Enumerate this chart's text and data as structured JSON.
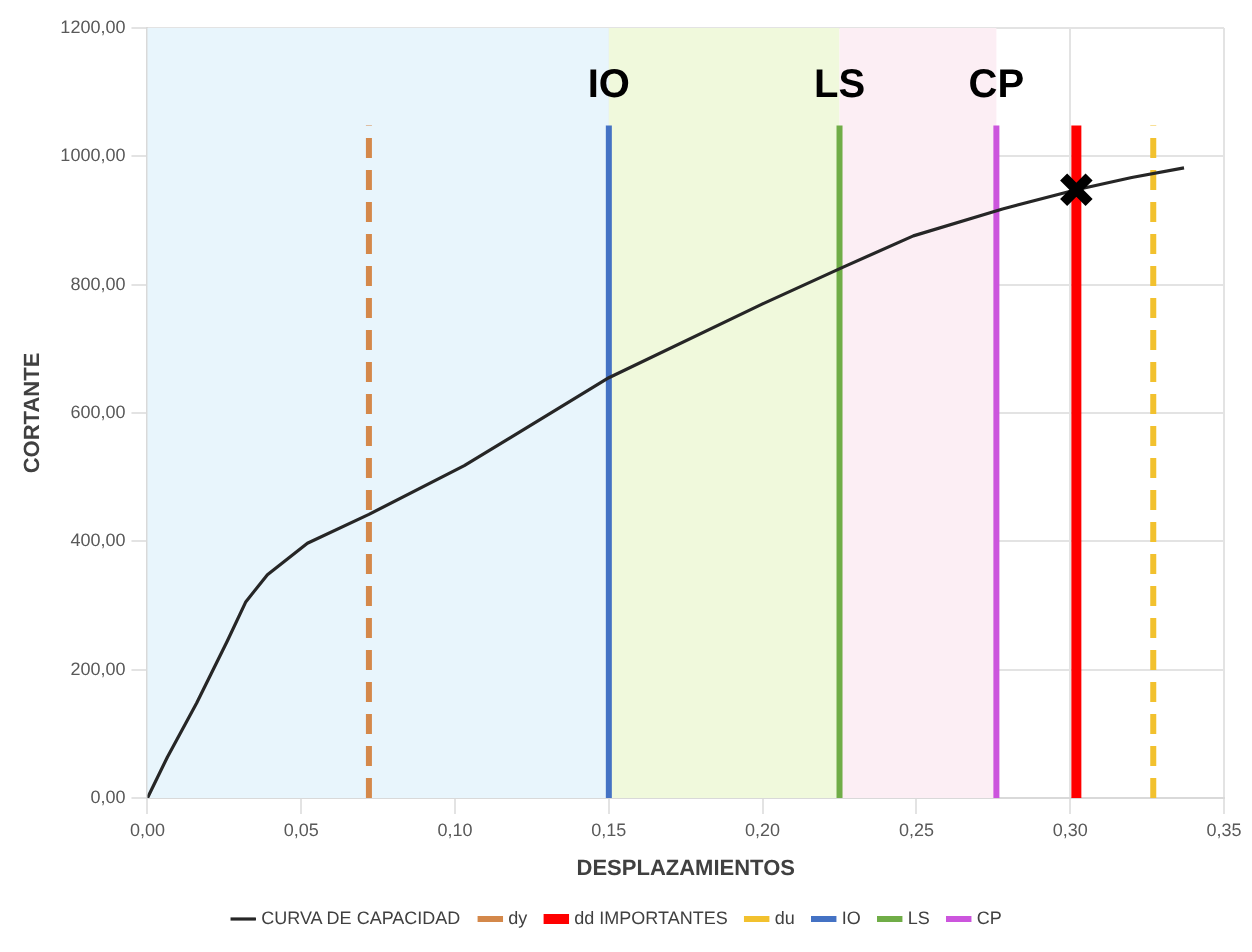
{
  "chart_data": {
    "type": "line",
    "xlabel": "DESPLAZAMIENTOS",
    "ylabel": "CORTANTE",
    "xlim": [
      0,
      0.35
    ],
    "ylim": [
      0,
      1200
    ],
    "xticks": [
      {
        "value": 0,
        "label": "0,00"
      },
      {
        "value": 0.05,
        "label": "0,05"
      },
      {
        "value": 0.1,
        "label": "0,10"
      },
      {
        "value": 0.15,
        "label": "0,15"
      },
      {
        "value": 0.2,
        "label": "0,20"
      },
      {
        "value": 0.25,
        "label": "0,25"
      },
      {
        "value": 0.3,
        "label": "0,30"
      },
      {
        "value": 0.35,
        "label": "0,35"
      }
    ],
    "yticks": [
      {
        "value": 0,
        "label": "0,00"
      },
      {
        "value": 200,
        "label": "200,00"
      },
      {
        "value": 400,
        "label": "400,00"
      },
      {
        "value": 600,
        "label": "600,00"
      },
      {
        "value": 800,
        "label": "800,00"
      },
      {
        "value": 1000,
        "label": "1000,00"
      },
      {
        "value": 1200,
        "label": "1200,00"
      }
    ],
    "grid": true,
    "legend": "bottom",
    "marker": "none",
    "series": [
      {
        "name": "CURVA DE CAPACIDAD",
        "color": "#262626",
        "x": [
          0,
          0.0065,
          0.016,
          0.026,
          0.032,
          0.039,
          0.052,
          0.072,
          0.103,
          0.15,
          0.2,
          0.226,
          0.249,
          0.278,
          0.302,
          0.32,
          0.337
        ],
        "values": [
          0,
          64,
          148,
          245,
          306,
          348,
          397,
          442,
          518,
          655,
          770,
          827,
          876,
          918,
          948,
          967,
          982
        ]
      },
      {
        "name": "dy",
        "color": "#d4884a",
        "line_style": "dashed",
        "x": [
          0.072,
          0.072
        ],
        "values": [
          0,
          1048
        ]
      },
      {
        "name": "dd IMPORTANTES",
        "color": "#ff0000",
        "x": [
          0.302,
          0.302
        ],
        "values": [
          0,
          1048
        ]
      },
      {
        "name": "du",
        "color": "#f2c12e",
        "line_style": "dashed",
        "x": [
          0.327,
          0.327
        ],
        "values": [
          0,
          1048
        ]
      },
      {
        "name": "IO",
        "color": "#4472c4",
        "x": [
          0.15,
          0.15
        ],
        "values": [
          0,
          1048
        ]
      },
      {
        "name": "LS",
        "color": "#70ad47",
        "x": [
          0.225,
          0.225
        ],
        "values": [
          0,
          1048
        ]
      },
      {
        "name": "CP",
        "color": "#cc55dd",
        "x": [
          0.276,
          0.276
        ],
        "values": [
          0,
          1048
        ]
      },
      {
        "type": "scatter",
        "marker": "cross",
        "color": "#000000",
        "x": [
          0.302
        ],
        "values": [
          948
        ]
      }
    ],
    "bands": [
      {
        "axis": "x",
        "from": 0,
        "to": 0.15,
        "color": "#e8f5fc"
      },
      {
        "axis": "x",
        "from": 0.15,
        "to": 0.225,
        "color": "#f0f9dc"
      },
      {
        "axis": "x",
        "from": 0.225,
        "to": 0.276,
        "color": "#fceef4"
      }
    ],
    "annotations": [
      {
        "text": "IO",
        "x": 0.15,
        "y": 1110
      },
      {
        "text": "LS",
        "x": 0.225,
        "y": 1110
      },
      {
        "text": "CP",
        "x": 0.276,
        "y": 1110
      }
    ]
  }
}
